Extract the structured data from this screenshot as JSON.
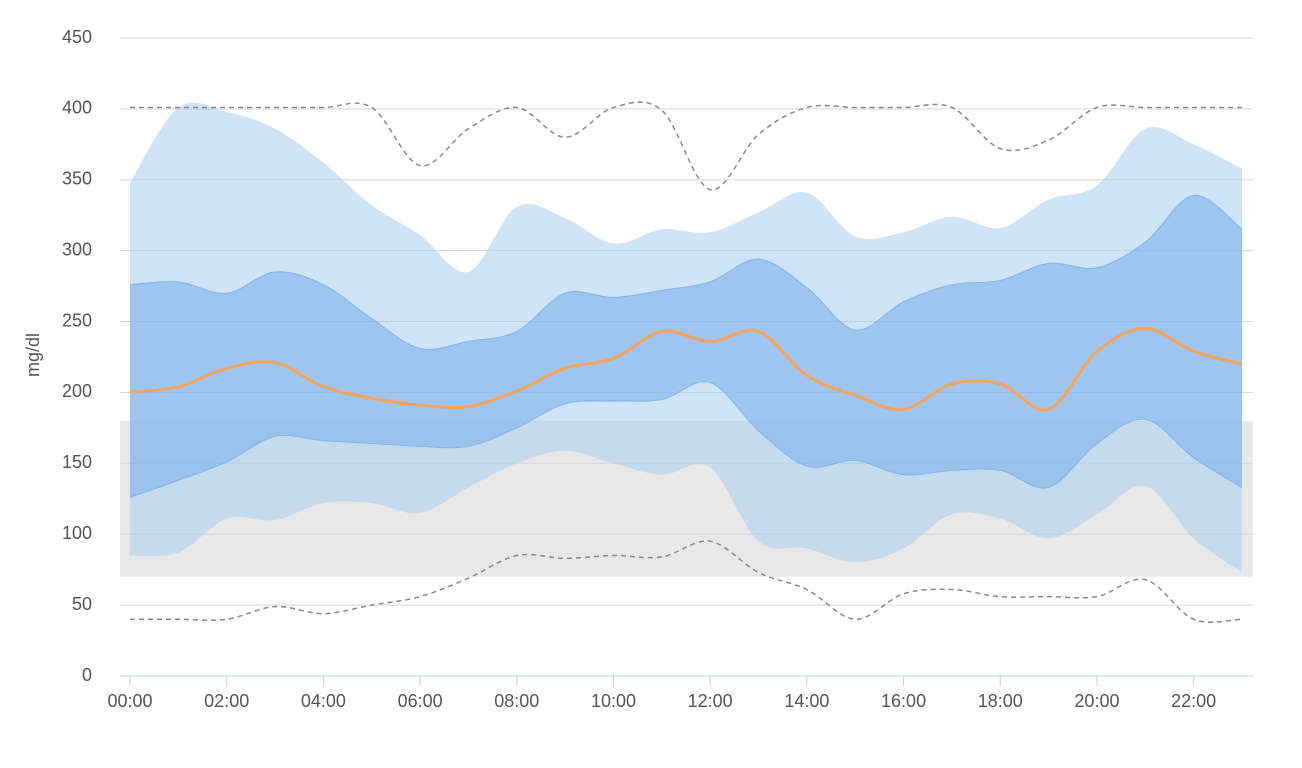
{
  "chart_data": {
    "type": "percentile-band",
    "y_label": "mg/dl",
    "categories": [
      "00:00",
      null,
      "02:00",
      null,
      "04:00",
      null,
      "06:00",
      null,
      "08:00",
      null,
      "10:00",
      null,
      "12:00",
      null,
      "14:00",
      null,
      "16:00",
      null,
      "18:00",
      null,
      "20:00",
      null,
      "22:00",
      null
    ],
    "ylim": [
      0,
      450
    ],
    "yticks": [
      0,
      50,
      100,
      150,
      200,
      250,
      300,
      350,
      400,
      450
    ],
    "grid": true,
    "target_range": {
      "range": [
        70,
        180
      ],
      "color": "#e8e8e8"
    },
    "bands": [
      {
        "upper": [
          348,
          401,
          398,
          386,
          362,
          332,
          311,
          285,
          331,
          323,
          305,
          315,
          313,
          327,
          341,
          310,
          313,
          324,
          316,
          336,
          346,
          386,
          375,
          358
        ],
        "lower": [
          85,
          87,
          111,
          110,
          122,
          122,
          115,
          133,
          150,
          159,
          150,
          142,
          147,
          95,
          90,
          80,
          90,
          114,
          111,
          97,
          114,
          134,
          97,
          73
        ],
        "color": "rgba(170,205,242,0.55)"
      },
      {
        "upper": [
          276,
          278,
          270,
          285,
          276,
          252,
          231,
          236,
          243,
          270,
          267,
          272,
          278,
          294,
          274,
          244,
          264,
          276,
          279,
          291,
          288,
          306,
          339,
          315
        ],
        "lower": [
          126,
          138,
          151,
          169,
          166,
          164,
          162,
          162,
          175,
          192,
          194,
          195,
          207,
          173,
          148,
          152,
          142,
          145,
          145,
          133,
          164,
          181,
          154,
          133
        ],
        "color": "rgba(124,176,234,0.6)",
        "stroke": "#7cb5ec"
      }
    ],
    "lines": [
      {
        "values": [
          200,
          204,
          217,
          221,
          204,
          196,
          191,
          190,
          201,
          217,
          224,
          243,
          236,
          243,
          212,
          198,
          188,
          206,
          206,
          188,
          229,
          245,
          229,
          220
        ],
        "color": "#f7a35c",
        "dashed": false
      },
      {
        "values": [
          401,
          401,
          401,
          401,
          401,
          401,
          360,
          386,
          401,
          380,
          401,
          399,
          343,
          382,
          401,
          401,
          401,
          401,
          372,
          378,
          401,
          401,
          401,
          401
        ],
        "color": "#888888",
        "dashed": true
      },
      {
        "values": [
          40,
          40,
          40,
          49,
          44,
          50,
          56,
          69,
          85,
          83,
          85,
          84,
          95,
          73,
          61,
          40,
          58,
          61,
          56,
          56,
          56,
          68,
          40,
          40
        ],
        "color": "#888888",
        "dashed": true
      }
    ]
  }
}
